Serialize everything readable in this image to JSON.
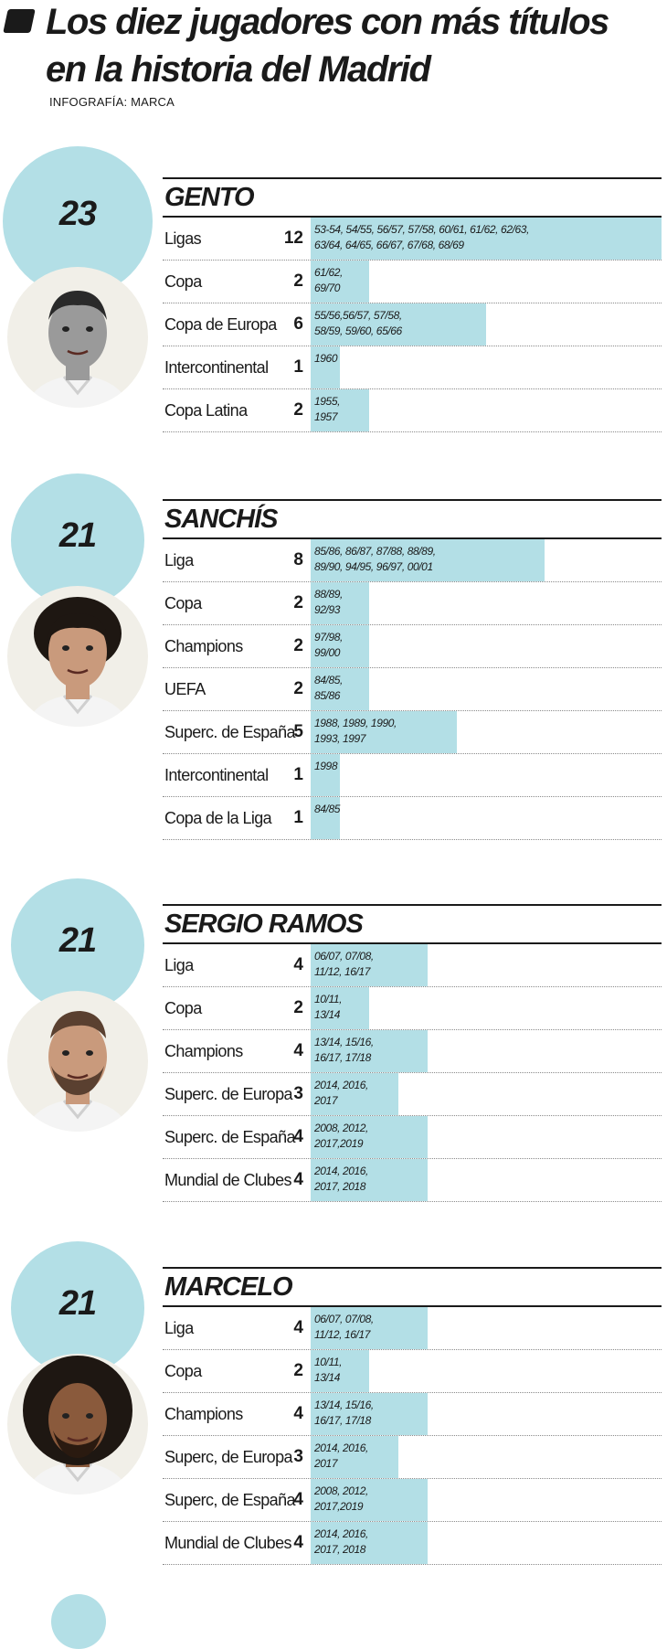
{
  "header": {
    "title_line1": "Los diez jugadores con más títulos",
    "title_line2": "en la historia del Madrid",
    "credit": "INFOGRAFÍA: MARCA"
  },
  "colors": {
    "bar": "#b3dfe6",
    "circle": "#b3dfe6",
    "text": "#1a1a1a"
  },
  "chart_data": {
    "type": "bar",
    "title": "Los diez jugadores con más títulos en la historia del Madrid",
    "bar_scale_max": 12,
    "players": [
      {
        "name": "GENTO",
        "total": "23",
        "photo": "gento-photo",
        "titles": [
          {
            "category": "Ligas",
            "value": 12,
            "years": "53-54, 54/55, 56/57, 57/58, 60/61, 61/62, 62/63,\n63/64, 64/65, 66/67, 67/68, 68/69"
          },
          {
            "category": "Copa",
            "value": 2,
            "years": "61/62,\n69/70"
          },
          {
            "category": "Copa de Europa",
            "value": 6,
            "years": "55/56,56/57, 57/58,\n58/59, 59/60, 65/66"
          },
          {
            "category": "Intercontinental",
            "value": 1,
            "years": "1960"
          },
          {
            "category": "Copa Latina",
            "value": 2,
            "years": "1955,\n1957"
          }
        ]
      },
      {
        "name": "SANCHÍS",
        "total": "21",
        "photo": "sanchis-photo",
        "titles": [
          {
            "category": "Liga",
            "value": 8,
            "years": "85/86, 86/87, 87/88, 88/89,\n89/90, 94/95, 96/97, 00/01"
          },
          {
            "category": "Copa",
            "value": 2,
            "years": "88/89,\n92/93"
          },
          {
            "category": "Champions",
            "value": 2,
            "years": "97/98,\n99/00"
          },
          {
            "category": "UEFA",
            "value": 2,
            "years": "84/85,\n85/86"
          },
          {
            "category": "Superc. de España",
            "value": 5,
            "years": "1988, 1989, 1990,\n1993, 1997"
          },
          {
            "category": "Intercontinental",
            "value": 1,
            "years": "1998"
          },
          {
            "category": "Copa de la Liga",
            "value": 1,
            "years": "84/85"
          }
        ]
      },
      {
        "name": "SERGIO RAMOS",
        "total": "21",
        "photo": "ramos-photo",
        "titles": [
          {
            "category": "Liga",
            "value": 4,
            "years": "06/07, 07/08,\n11/12, 16/17"
          },
          {
            "category": "Copa",
            "value": 2,
            "years": "10/11,\n13/14"
          },
          {
            "category": "Champions",
            "value": 4,
            "years": "13/14, 15/16,\n16/17, 17/18"
          },
          {
            "category": "Superc. de Europa",
            "value": 3,
            "years": "2014, 2016,\n2017"
          },
          {
            "category": "Superc. de España",
            "value": 4,
            "years": "2008, 2012,\n2017,2019"
          },
          {
            "category": "Mundial de Clubes",
            "value": 4,
            "years": "2014, 2016,\n2017, 2018"
          }
        ]
      },
      {
        "name": "MARCELO",
        "total": "21",
        "photo": "marcelo-photo",
        "titles": [
          {
            "category": "Liga",
            "value": 4,
            "years": "06/07, 07/08,\n11/12, 16/17"
          },
          {
            "category": "Copa",
            "value": 2,
            "years": "10/11,\n13/14"
          },
          {
            "category": "Champions",
            "value": 4,
            "years": "13/14, 15/16,\n16/17, 17/18"
          },
          {
            "category": "Superc, de Europa",
            "value": 3,
            "years": "2014, 2016,\n2017"
          },
          {
            "category": "Superc, de España",
            "value": 4,
            "years": "2008, 2012,\n2017,2019"
          },
          {
            "category": "Mundial de Clubes",
            "value": 4,
            "years": "2014, 2016,\n2017, 2018"
          }
        ]
      }
    ]
  }
}
